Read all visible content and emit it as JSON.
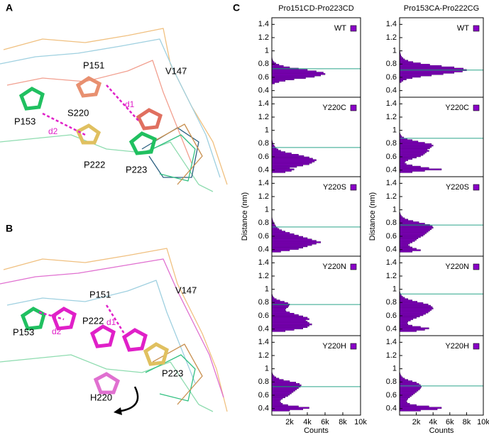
{
  "panels": {
    "A": {
      "label": "A",
      "labels": [
        "P151",
        "V147",
        "d1",
        "P153",
        "S220",
        "d2",
        "P223",
        "P222"
      ]
    },
    "B": {
      "label": "B",
      "labels": [
        "P151",
        "V147",
        "P153",
        "P222",
        "d2",
        "d1",
        "P223",
        "H220"
      ]
    },
    "C": {
      "label": "C"
    }
  },
  "chart_data": [
    {
      "type": "histogram",
      "orientation": "horizontal",
      "title": "Pro151CD-Pro223CD",
      "legend": "upper right",
      "xlim": [
        0,
        10000
      ],
      "ylim": [
        0.3,
        1.5
      ],
      "yticks": [
        0.4,
        0.6,
        0.8,
        1,
        1.2,
        1.4
      ],
      "reference_line": {
        "value": 0.73,
        "color": "#2aa58a"
      },
      "bins": [
        0.36,
        0.38,
        0.4,
        0.42,
        0.44,
        0.46,
        0.48,
        0.5,
        0.52,
        0.54,
        0.56,
        0.58,
        0.6,
        0.62,
        0.64,
        0.66,
        0.68,
        0.7,
        0.72,
        0.74,
        0.76,
        0.78,
        0.8,
        0.82,
        0.84,
        0.86,
        0.88,
        0.9,
        0.92,
        0.94,
        0.96,
        0.98,
        1.0
      ],
      "series": [
        {
          "name": "WT",
          "color": "#8a00c8",
          "values": [
            0,
            0,
            0,
            0,
            0,
            0,
            0,
            300,
            800,
            1500,
            2500,
            3800,
            4800,
            5500,
            6000,
            5800,
            5000,
            4000,
            3000,
            2000,
            1300,
            800,
            450,
            250,
            120,
            60,
            30,
            0,
            0,
            0,
            0,
            0
          ]
        }
      ]
    },
    {
      "type": "histogram",
      "orientation": "horizontal",
      "legend": "upper right",
      "xlim": [
        0,
        10000
      ],
      "ylim": [
        0.3,
        1.5
      ],
      "yticks": [
        0.4,
        0.6,
        0.8,
        1,
        1.2,
        1.4
      ],
      "reference_line": {
        "value": 0.74,
        "color": "#2aa58a"
      },
      "bins": [
        0.36,
        0.38,
        0.4,
        0.42,
        0.44,
        0.46,
        0.48,
        0.5,
        0.52,
        0.54,
        0.56,
        0.58,
        0.6,
        0.62,
        0.64,
        0.66,
        0.68,
        0.7,
        0.72,
        0.74,
        0.76,
        0.78,
        0.8,
        0.82,
        0.84,
        0.86,
        0.88,
        0.9,
        0.92,
        0.94,
        0.96,
        0.98,
        1.0
      ],
      "series": [
        {
          "name": "Y220C",
          "color": "#8a00c8",
          "values": [
            1500,
            2200,
            2500,
            2000,
            2800,
            3500,
            4200,
            4500,
            4800,
            5000,
            4600,
            4200,
            3600,
            3000,
            2200,
            1500,
            1000,
            700,
            500,
            350,
            250,
            150,
            100,
            60,
            30,
            0,
            0,
            0,
            0,
            0,
            0,
            0
          ]
        }
      ]
    },
    {
      "type": "histogram",
      "orientation": "horizontal",
      "ylabel": "Distance (nm)",
      "legend": "upper right",
      "xlim": [
        0,
        10000
      ],
      "ylim": [
        0.3,
        1.5
      ],
      "yticks": [
        0.4,
        0.6,
        0.8,
        1,
        1.2,
        1.4
      ],
      "reference_line": {
        "value": 0.74,
        "color": "#2aa58a"
      },
      "bins": [
        0.36,
        0.38,
        0.4,
        0.42,
        0.44,
        0.46,
        0.48,
        0.5,
        0.52,
        0.54,
        0.56,
        0.58,
        0.6,
        0.62,
        0.64,
        0.66,
        0.68,
        0.7,
        0.72,
        0.74,
        0.76,
        0.78,
        0.8,
        0.82,
        0.84,
        0.86,
        0.88,
        0.9,
        0.92,
        0.94,
        0.96,
        0.98,
        1.0
      ],
      "series": [
        {
          "name": "Y220S",
          "color": "#8a00c8",
          "values": [
            1000,
            2000,
            3000,
            3500,
            4000,
            4500,
            5000,
            5500,
            5000,
            4500,
            4000,
            3500,
            3000,
            2500,
            2000,
            1500,
            1100,
            800,
            600,
            450,
            350,
            250,
            180,
            120,
            80,
            40,
            20,
            0,
            0,
            0,
            0,
            0
          ]
        }
      ]
    },
    {
      "type": "histogram",
      "orientation": "horizontal",
      "legend": "upper right",
      "xlim": [
        0,
        10000
      ],
      "ylim": [
        0.3,
        1.5
      ],
      "yticks": [
        0.4,
        0.6,
        0.8,
        1,
        1.2,
        1.4
      ],
      "reference_line": {
        "value": 0.77,
        "color": "#2aa58a"
      },
      "bins": [
        0.36,
        0.38,
        0.4,
        0.42,
        0.44,
        0.46,
        0.48,
        0.5,
        0.52,
        0.54,
        0.56,
        0.58,
        0.6,
        0.62,
        0.64,
        0.66,
        0.68,
        0.7,
        0.72,
        0.74,
        0.76,
        0.78,
        0.8,
        0.82,
        0.84,
        0.86,
        0.88,
        0.9,
        0.92,
        0.94,
        0.96,
        0.98,
        1.0
      ],
      "series": [
        {
          "name": "Y220N",
          "color": "#8a00c8",
          "values": [
            1500,
            2500,
            3500,
            4000,
            4200,
            4500,
            4200,
            4000,
            3800,
            4200,
            4000,
            3500,
            3000,
            2500,
            2000,
            1600,
            1500,
            1600,
            1800,
            1900,
            2000,
            1800,
            1400,
            900,
            500,
            250,
            120,
            60,
            20,
            0,
            0,
            0
          ]
        }
      ]
    },
    {
      "type": "histogram",
      "orientation": "horizontal",
      "xlabel": "Counts",
      "legend": "upper right",
      "xlim": [
        0,
        10000
      ],
      "ylim": [
        0.3,
        1.5
      ],
      "yticks": [
        0.4,
        0.6,
        0.8,
        1,
        1.2,
        1.4
      ],
      "xticks": [
        {
          "value": 2000,
          "label": "2k"
        },
        {
          "value": 4000,
          "label": "4k"
        },
        {
          "value": 6000,
          "label": "6k"
        },
        {
          "value": 8000,
          "label": "8k"
        },
        {
          "value": 10000,
          "label": "10k"
        }
      ],
      "reference_line": {
        "value": 0.73,
        "color": "#2aa58a"
      },
      "bins": [
        0.36,
        0.38,
        0.4,
        0.42,
        0.44,
        0.46,
        0.48,
        0.5,
        0.52,
        0.54,
        0.56,
        0.58,
        0.6,
        0.62,
        0.64,
        0.66,
        0.68,
        0.7,
        0.72,
        0.74,
        0.76,
        0.78,
        0.8,
        0.82,
        0.84,
        0.86,
        0.88,
        0.9,
        0.92,
        0.94,
        0.96,
        0.98,
        1.0
      ],
      "series": [
        {
          "name": "Y220H",
          "color": "#8a00c8",
          "values": [
            2000,
            3500,
            4200,
            3000,
            1800,
            1200,
            1000,
            900,
            1000,
            1200,
            1500,
            1800,
            2000,
            2200,
            2400,
            2600,
            2800,
            3000,
            3200,
            3300,
            3100,
            2700,
            2000,
            1300,
            800,
            450,
            250,
            120,
            50,
            20,
            0,
            0
          ]
        }
      ]
    },
    {
      "type": "histogram",
      "orientation": "horizontal",
      "title": "Pro153CA-Pro222CG",
      "legend": "upper right",
      "xlim": [
        0,
        10000
      ],
      "ylim": [
        0.3,
        1.5
      ],
      "yticks": [
        0.4,
        0.6,
        0.8,
        1,
        1.2,
        1.4
      ],
      "reference_line": {
        "value": 0.71,
        "color": "#2aa58a"
      },
      "bins": [
        0.36,
        0.38,
        0.4,
        0.42,
        0.44,
        0.46,
        0.48,
        0.5,
        0.52,
        0.54,
        0.56,
        0.58,
        0.6,
        0.62,
        0.64,
        0.66,
        0.68,
        0.7,
        0.72,
        0.74,
        0.76,
        0.78,
        0.8,
        0.82,
        0.84,
        0.86,
        0.88,
        0.9,
        0.92,
        0.94,
        0.96,
        0.98,
        1.0
      ],
      "series": [
        {
          "name": "WT",
          "color": "#8a00c8",
          "values": [
            0,
            0,
            0,
            0,
            0,
            0,
            0,
            0,
            200,
            400,
            800,
            1500,
            2500,
            3800,
            5200,
            6500,
            7500,
            8000,
            7600,
            6500,
            5000,
            3600,
            2500,
            1600,
            1000,
            600,
            400,
            250,
            150,
            100,
            60,
            40
          ]
        }
      ]
    },
    {
      "type": "histogram",
      "orientation": "horizontal",
      "legend": "upper right",
      "xlim": [
        0,
        10000
      ],
      "ylim": [
        0.3,
        1.5
      ],
      "yticks": [
        0.4,
        0.6,
        0.8,
        1,
        1.2,
        1.4
      ],
      "reference_line": {
        "value": 0.88,
        "color": "#2aa58a"
      },
      "bins": [
        0.36,
        0.38,
        0.4,
        0.42,
        0.44,
        0.46,
        0.48,
        0.5,
        0.52,
        0.54,
        0.56,
        0.58,
        0.6,
        0.62,
        0.64,
        0.66,
        0.68,
        0.7,
        0.72,
        0.74,
        0.76,
        0.78,
        0.8,
        0.82,
        0.84,
        0.86,
        0.88,
        0.9,
        0.92,
        0.94,
        0.96,
        0.98,
        1.0
      ],
      "series": [
        {
          "name": "Y220C",
          "color": "#8a00c8",
          "values": [
            1500,
            3000,
            5000,
            3500,
            2500,
            1500,
            800,
            600,
            700,
            1000,
            1500,
            2000,
            2500,
            2800,
            3000,
            3200,
            3500,
            3300,
            3600,
            3800,
            4000,
            3800,
            3000,
            2200,
            1500,
            900,
            500,
            250,
            120,
            50,
            20,
            0
          ]
        }
      ]
    },
    {
      "type": "histogram",
      "orientation": "horizontal",
      "ylabel": "Distance (nm)",
      "legend": "upper right",
      "xlim": [
        0,
        10000
      ],
      "ylim": [
        0.3,
        1.5
      ],
      "yticks": [
        0.4,
        0.6,
        0.8,
        1,
        1.2,
        1.4
      ],
      "reference_line": {
        "value": 0.77,
        "color": "#2aa58a"
      },
      "bins": [
        0.36,
        0.38,
        0.4,
        0.42,
        0.44,
        0.46,
        0.48,
        0.5,
        0.52,
        0.54,
        0.56,
        0.58,
        0.6,
        0.62,
        0.64,
        0.66,
        0.68,
        0.7,
        0.72,
        0.74,
        0.76,
        0.78,
        0.8,
        0.82,
        0.84,
        0.86,
        0.88,
        0.9,
        0.92,
        0.94,
        0.96,
        0.98,
        1.0
      ],
      "series": [
        {
          "name": "Y220S",
          "color": "#8a00c8",
          "values": [
            1500,
            2500,
            2000,
            1500,
            1200,
            1000,
            1200,
            1500,
            1800,
            2000,
            2200,
            2500,
            2800,
            3000,
            3200,
            3400,
            3600,
            3800,
            4000,
            3900,
            3600,
            3000,
            2300,
            1600,
            1000,
            600,
            350,
            200,
            100,
            50,
            20,
            0
          ]
        }
      ]
    },
    {
      "type": "histogram",
      "orientation": "horizontal",
      "legend": "upper right",
      "xlim": [
        0,
        10000
      ],
      "ylim": [
        0.3,
        1.5
      ],
      "yticks": [
        0.4,
        0.6,
        0.8,
        1,
        1.2,
        1.4
      ],
      "reference_line": {
        "value": 0.93,
        "color": "#2aa58a"
      },
      "bins": [
        0.36,
        0.38,
        0.4,
        0.42,
        0.44,
        0.46,
        0.48,
        0.5,
        0.52,
        0.54,
        0.56,
        0.58,
        0.6,
        0.62,
        0.64,
        0.66,
        0.68,
        0.7,
        0.72,
        0.74,
        0.76,
        0.78,
        0.8,
        0.82,
        0.84,
        0.86,
        0.88,
        0.9,
        0.92,
        0.94,
        0.96,
        0.98,
        1.0
      ],
      "series": [
        {
          "name": "Y220N",
          "color": "#8a00c8",
          "values": [
            2000,
            3000,
            3500,
            2500,
            1500,
            1000,
            900,
            1000,
            1300,
            1600,
            2000,
            2400,
            2800,
            3100,
            3400,
            3600,
            3800,
            4000,
            3900,
            3700,
            3400,
            2800,
            2100,
            1500,
            1000,
            600,
            350,
            200,
            100,
            50,
            20,
            0
          ]
        }
      ]
    },
    {
      "type": "histogram",
      "orientation": "horizontal",
      "xlabel": "Counts",
      "legend": "upper right",
      "xlim": [
        0,
        10000
      ],
      "ylim": [
        0.3,
        1.5
      ],
      "yticks": [
        0.4,
        0.6,
        0.8,
        1,
        1.2,
        1.4
      ],
      "xticks": [
        {
          "value": 2000,
          "label": "2k"
        },
        {
          "value": 4000,
          "label": "4k"
        },
        {
          "value": 6000,
          "label": "6k"
        },
        {
          "value": 8000,
          "label": "8k"
        },
        {
          "value": 10000,
          "label": "10k"
        }
      ],
      "reference_line": {
        "value": 0.74,
        "color": "#2aa58a"
      },
      "bins": [
        0.36,
        0.38,
        0.4,
        0.42,
        0.44,
        0.46,
        0.48,
        0.5,
        0.52,
        0.54,
        0.56,
        0.58,
        0.6,
        0.62,
        0.64,
        0.66,
        0.68,
        0.7,
        0.72,
        0.74,
        0.76,
        0.78,
        0.8,
        0.82,
        0.84,
        0.86,
        0.88,
        0.9,
        0.92,
        0.94,
        0.96,
        0.98,
        1.0
      ],
      "series": [
        {
          "name": "Y220H",
          "color": "#8a00c8",
          "values": [
            2500,
            4500,
            5000,
            3500,
            2000,
            1200,
            900,
            800,
            900,
            1000,
            1200,
            1400,
            1600,
            1800,
            2000,
            2200,
            2400,
            2500,
            2600,
            2500,
            2300,
            2000,
            1500,
            1000,
            600,
            350,
            200,
            100,
            50,
            20,
            0,
            0
          ]
        }
      ]
    }
  ]
}
